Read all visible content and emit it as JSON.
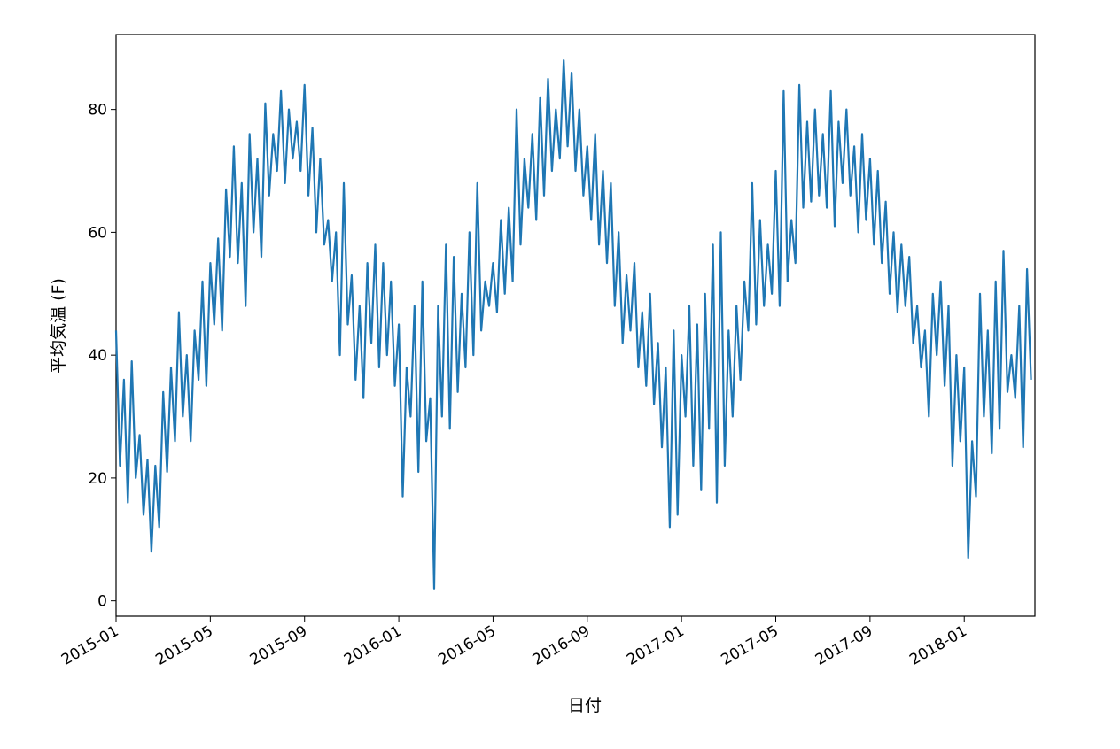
{
  "chart_data": {
    "type": "line",
    "xlabel": "日付",
    "ylabel": "平均気温 (F)",
    "x": [
      "2015-01",
      "2015-02",
      "2015-03",
      "2015-04",
      "2015-05",
      "2015-06",
      "2015-07",
      "2015-08",
      "2015-09",
      "2015-10",
      "2015-11",
      "2015-12",
      "2016-01",
      "2016-02",
      "2016-03",
      "2016-04",
      "2016-05",
      "2016-06",
      "2016-07",
      "2016-08",
      "2016-09",
      "2016-10",
      "2016-11",
      "2016-12",
      "2017-01",
      "2017-02",
      "2017-03",
      "2017-04",
      "2017-05",
      "2017-06",
      "2017-07",
      "2017-08",
      "2017-09",
      "2017-10",
      "2017-11",
      "2017-12",
      "2018-01",
      "2018-02",
      "2018-03"
    ],
    "series": [
      {
        "color": "#1f77b4",
        "values": [
          [
            44,
            22,
            36,
            16,
            39,
            20
          ],
          [
            27,
            14,
            23,
            8,
            22,
            12
          ],
          [
            34,
            21,
            38,
            26,
            47,
            30
          ],
          [
            40,
            26,
            44,
            36,
            52,
            35
          ],
          [
            55,
            45,
            59,
            44,
            67,
            56
          ],
          [
            74,
            55,
            68,
            48,
            76,
            60
          ],
          [
            72,
            56,
            81,
            66,
            76,
            70
          ],
          [
            83,
            68,
            80,
            72,
            78,
            70
          ],
          [
            84,
            66,
            77,
            60,
            72,
            58
          ],
          [
            62,
            52,
            60,
            40,
            68,
            45
          ],
          [
            53,
            36,
            48,
            33,
            55,
            42
          ],
          [
            58,
            38,
            55,
            40,
            52,
            35
          ],
          [
            45,
            17,
            38,
            30,
            48,
            21
          ],
          [
            52,
            26,
            33,
            2,
            48,
            30
          ],
          [
            58,
            28,
            56,
            34,
            50,
            38
          ],
          [
            60,
            40,
            68,
            44,
            52,
            48
          ],
          [
            55,
            47,
            62,
            50,
            64,
            52
          ],
          [
            80,
            58,
            72,
            64,
            76,
            62
          ],
          [
            82,
            66,
            85,
            70,
            80,
            72
          ],
          [
            88,
            74,
            86,
            70,
            80,
            66
          ],
          [
            74,
            62,
            76,
            58,
            70,
            55
          ],
          [
            68,
            48,
            60,
            42,
            53,
            44
          ],
          [
            55,
            38,
            47,
            35,
            50,
            32
          ],
          [
            42,
            25,
            38,
            12,
            44,
            14
          ],
          [
            40,
            30,
            48,
            22,
            45,
            18
          ],
          [
            50,
            28,
            58,
            16,
            60,
            22
          ],
          [
            44,
            30,
            48,
            36,
            52,
            44
          ],
          [
            68,
            45,
            62,
            48,
            58,
            50
          ],
          [
            70,
            48,
            83,
            52,
            62,
            55
          ],
          [
            84,
            64,
            78,
            65,
            80,
            66
          ],
          [
            76,
            64,
            83,
            61,
            78,
            68
          ],
          [
            80,
            66,
            74,
            60,
            76,
            62
          ],
          [
            72,
            58,
            70,
            55,
            65,
            50
          ],
          [
            60,
            47,
            58,
            48,
            56,
            42
          ],
          [
            48,
            38,
            44,
            30,
            50,
            40
          ],
          [
            52,
            35,
            48,
            22,
            40,
            26
          ],
          [
            38,
            7,
            26,
            17,
            50,
            30
          ],
          [
            44,
            24,
            52,
            28,
            57,
            34
          ],
          [
            40,
            33,
            48,
            25,
            54,
            36
          ]
        ]
      }
    ],
    "xlim": [
      "2015-01",
      "2018-03"
    ],
    "xticks": [
      "2015-01",
      "2015-05",
      "2015-09",
      "2016-01",
      "2016-05",
      "2016-09",
      "2017-01",
      "2017-05",
      "2017-09",
      "2018-01"
    ],
    "ylim": [
      -2.5,
      92.2
    ],
    "yticks": [
      0,
      20,
      40,
      60,
      80
    ]
  }
}
